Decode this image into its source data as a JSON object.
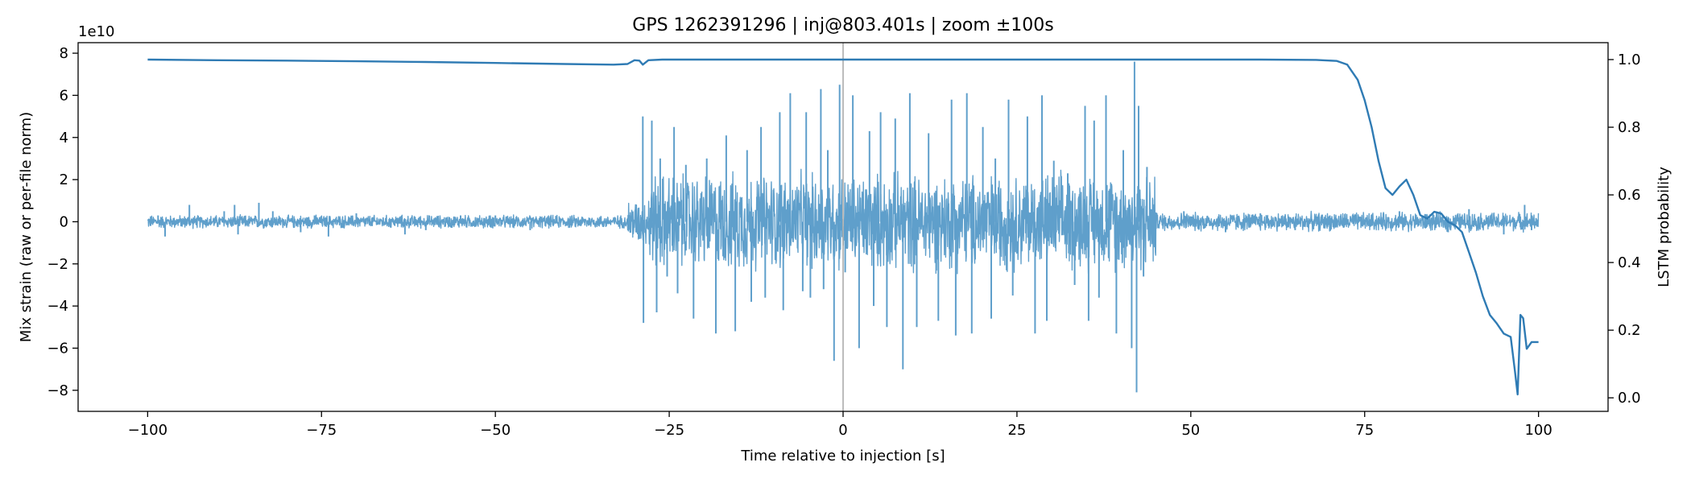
{
  "chart_data": {
    "type": "line",
    "title": "GPS 1262391296 | inj@803.401s | zoom ±100s",
    "xlabel": "Time relative to injection [s]",
    "ylabel_left": "Mix strain (raw or per-file norm)",
    "ylabel_right": "LSTM probability",
    "left_offset_label": "1e10",
    "xlim": [
      -110,
      110
    ],
    "ylim_left": [
      -9,
      8.5
    ],
    "ylim_right": [
      -0.04,
      1.05
    ],
    "xticks": [
      -100,
      -75,
      -50,
      -25,
      0,
      25,
      50,
      75,
      100
    ],
    "xtick_labels": [
      "−100",
      "−75",
      "−50",
      "−25",
      "0",
      "25",
      "50",
      "75",
      "100"
    ],
    "yticks_left": [
      -8,
      -6,
      -4,
      -2,
      0,
      2,
      4,
      6,
      8
    ],
    "ytick_left_labels": [
      "−8",
      "−6",
      "−4",
      "−2",
      "0",
      "2",
      "4",
      "6",
      "8"
    ],
    "yticks_right": [
      0.0,
      0.2,
      0.4,
      0.6,
      0.8,
      1.0
    ],
    "ytick_right_labels": [
      "0.0",
      "0.2",
      "0.4",
      "0.6",
      "0.8",
      "1.0"
    ],
    "injection_marker_x": 0,
    "colors": {
      "strain": "#5f9fcb",
      "probability": "#2f7bb4",
      "marker": "#b0b0b0"
    },
    "series": [
      {
        "name": "",
        "axis": "right",
        "points": [
          [
            -100,
            1.0
          ],
          [
            -90,
            0.998
          ],
          [
            -80,
            0.997
          ],
          [
            -70,
            0.995
          ],
          [
            -60,
            0.993
          ],
          [
            -50,
            0.99
          ],
          [
            -40,
            0.987
          ],
          [
            -33,
            0.985
          ],
          [
            -31,
            0.987
          ],
          [
            -30,
            0.998
          ],
          [
            -29.3,
            0.997
          ],
          [
            -28.8,
            0.985
          ],
          [
            -28,
            0.998
          ],
          [
            -26,
            1.0
          ],
          [
            -20,
            1.0
          ],
          [
            0,
            1.0
          ],
          [
            40,
            1.0
          ],
          [
            60,
            1.0
          ],
          [
            68,
            0.999
          ],
          [
            71,
            0.996
          ],
          [
            72.5,
            0.985
          ],
          [
            74,
            0.94
          ],
          [
            75,
            0.88
          ],
          [
            76,
            0.8
          ],
          [
            77,
            0.7
          ],
          [
            78,
            0.62
          ],
          [
            79,
            0.6
          ],
          [
            80,
            0.625
          ],
          [
            81,
            0.645
          ],
          [
            82,
            0.6
          ],
          [
            83,
            0.54
          ],
          [
            84,
            0.53
          ],
          [
            85,
            0.55
          ],
          [
            86,
            0.545
          ],
          [
            87,
            0.52
          ],
          [
            88,
            0.51
          ],
          [
            89,
            0.49
          ],
          [
            90,
            0.43
          ],
          [
            91,
            0.37
          ],
          [
            92,
            0.3
          ],
          [
            93,
            0.245
          ],
          [
            94,
            0.22
          ],
          [
            95,
            0.19
          ],
          [
            96,
            0.18
          ],
          [
            96.6,
            0.08
          ],
          [
            97,
            0.01
          ],
          [
            97.4,
            0.245
          ],
          [
            97.8,
            0.235
          ],
          [
            98.3,
            0.145
          ],
          [
            99,
            0.165
          ],
          [
            100,
            0.165
          ]
        ]
      },
      {
        "name": "",
        "axis": "left",
        "segments": [
          {
            "x0": -100,
            "x1": -31,
            "amp": 0.35
          },
          {
            "x0": -31,
            "x1": -28,
            "amp": 1.2
          },
          {
            "x0": -28,
            "x1": 45,
            "amp": 2.6
          },
          {
            "x0": 45,
            "x1": 100,
            "amp": 0.5
          }
        ],
        "spikes": [
          [
            -98.5,
            0.3
          ],
          [
            -97.5,
            -0.7
          ],
          [
            -94,
            0.8
          ],
          [
            -89,
            0.5
          ],
          [
            -87.5,
            0.8
          ],
          [
            -87,
            -0.6
          ],
          [
            -84,
            0.9
          ],
          [
            -82,
            0.5
          ],
          [
            -78,
            -0.5
          ],
          [
            -76,
            0.3
          ],
          [
            -74,
            -0.7
          ],
          [
            -70,
            0.4
          ],
          [
            -63,
            -0.6
          ],
          [
            -60,
            -0.4
          ],
          [
            -55,
            0.3
          ],
          [
            -50,
            0.3
          ],
          [
            -45,
            -0.4
          ],
          [
            -28.8,
            5.0
          ],
          [
            -28.7,
            -4.8
          ],
          [
            -27.5,
            4.8
          ],
          [
            -26.8,
            -4.3
          ],
          [
            -26.3,
            3.0
          ],
          [
            -25.3,
            -2.6
          ],
          [
            -24.3,
            4.5
          ],
          [
            -23.8,
            -3.4
          ],
          [
            -22.6,
            2.7
          ],
          [
            -21.5,
            -4.6
          ],
          [
            -19.6,
            3.0
          ],
          [
            -18.3,
            -5.3
          ],
          [
            -16.8,
            4.1
          ],
          [
            -15.5,
            -5.2
          ],
          [
            -13.8,
            3.4
          ],
          [
            -13.2,
            -3.8
          ],
          [
            -11.8,
            4.5
          ],
          [
            -11.2,
            -3.6
          ],
          [
            -9.1,
            5.2
          ],
          [
            -8.6,
            -4.2
          ],
          [
            -7.6,
            6.1
          ],
          [
            -5.8,
            -3.3
          ],
          [
            -5.3,
            5.2
          ],
          [
            -4.7,
            -3.6
          ],
          [
            -3.2,
            6.3
          ],
          [
            -2.8,
            -3.2
          ],
          [
            -2.2,
            3.4
          ],
          [
            -1.3,
            -6.6
          ],
          [
            -0.5,
            6.5
          ],
          [
            0.3,
            -2.4
          ],
          [
            1.4,
            6.0
          ],
          [
            2.3,
            -6.0
          ],
          [
            3.8,
            4.3
          ],
          [
            4.4,
            -4.0
          ],
          [
            5.4,
            5.2
          ],
          [
            6.3,
            -5.0
          ],
          [
            7.5,
            4.9
          ],
          [
            8.6,
            -7.0
          ],
          [
            9.6,
            6.1
          ],
          [
            10.6,
            -5.0
          ],
          [
            12.3,
            4.2
          ],
          [
            13.7,
            -4.7
          ],
          [
            15.6,
            5.8
          ],
          [
            16.2,
            -5.4
          ],
          [
            17.8,
            6.1
          ],
          [
            18.5,
            -5.3
          ],
          [
            20.1,
            4.5
          ],
          [
            21.3,
            -4.6
          ],
          [
            21.9,
            3.0
          ],
          [
            23.8,
            5.8
          ],
          [
            24.4,
            -3.5
          ],
          [
            26.5,
            5.0
          ],
          [
            27.6,
            -5.3
          ],
          [
            28.6,
            6.0
          ],
          [
            29.3,
            -4.7
          ],
          [
            30.3,
            2.9
          ],
          [
            32.3,
            2.3
          ],
          [
            33.3,
            -3.0
          ],
          [
            34.8,
            5.5
          ],
          [
            35.3,
            -4.7
          ],
          [
            36.1,
            4.8
          ],
          [
            36.8,
            -3.6
          ],
          [
            37.8,
            6.0
          ],
          [
            39.3,
            -5.3
          ],
          [
            40.3,
            3.4
          ],
          [
            41.5,
            -6.0
          ],
          [
            41.9,
            7.6
          ],
          [
            42.2,
            -8.1
          ],
          [
            42.5,
            5.5
          ],
          [
            43.2,
            -2.6
          ],
          [
            43.7,
            2.6
          ],
          [
            49,
            0.5
          ],
          [
            55,
            -0.5
          ],
          [
            60,
            0.4
          ],
          [
            65,
            -0.4
          ],
          [
            70,
            0.3
          ],
          [
            80,
            0.5
          ],
          [
            84,
            0.3
          ],
          [
            87,
            -0.5
          ],
          [
            90,
            0.6
          ],
          [
            95,
            -0.6
          ],
          [
            98,
            0.8
          ],
          [
            99,
            -0.4
          ]
        ]
      }
    ]
  }
}
